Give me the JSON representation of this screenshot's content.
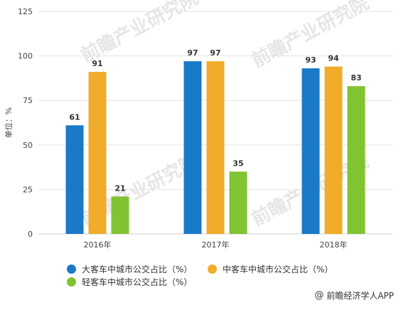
{
  "chart_data": {
    "type": "bar",
    "categories": [
      "2016年",
      "2017年",
      "2018年"
    ],
    "series": [
      {
        "name": "大客车中城市公交占比（%）",
        "values": [
          61,
          97,
          93
        ],
        "color": "#1a79c9"
      },
      {
        "name": "中客车中城市公交占比（%）",
        "values": [
          91,
          97,
          94
        ],
        "color": "#f0ac2a"
      },
      {
        "name": "轻客车中城市公交占比（%）",
        "values": [
          21,
          35,
          83
        ],
        "color": "#80c431"
      }
    ],
    "ylabel": "单位：%",
    "ylim": [
      0,
      125
    ],
    "yticks": [
      0,
      25,
      50,
      75,
      100,
      125
    ],
    "grid": true,
    "legend_position": "bottom"
  },
  "watermark_text": "前瞻产业研究院",
  "credit": {
    "icon": "at-sign-icon",
    "text": "前瞻经济学人APP"
  }
}
